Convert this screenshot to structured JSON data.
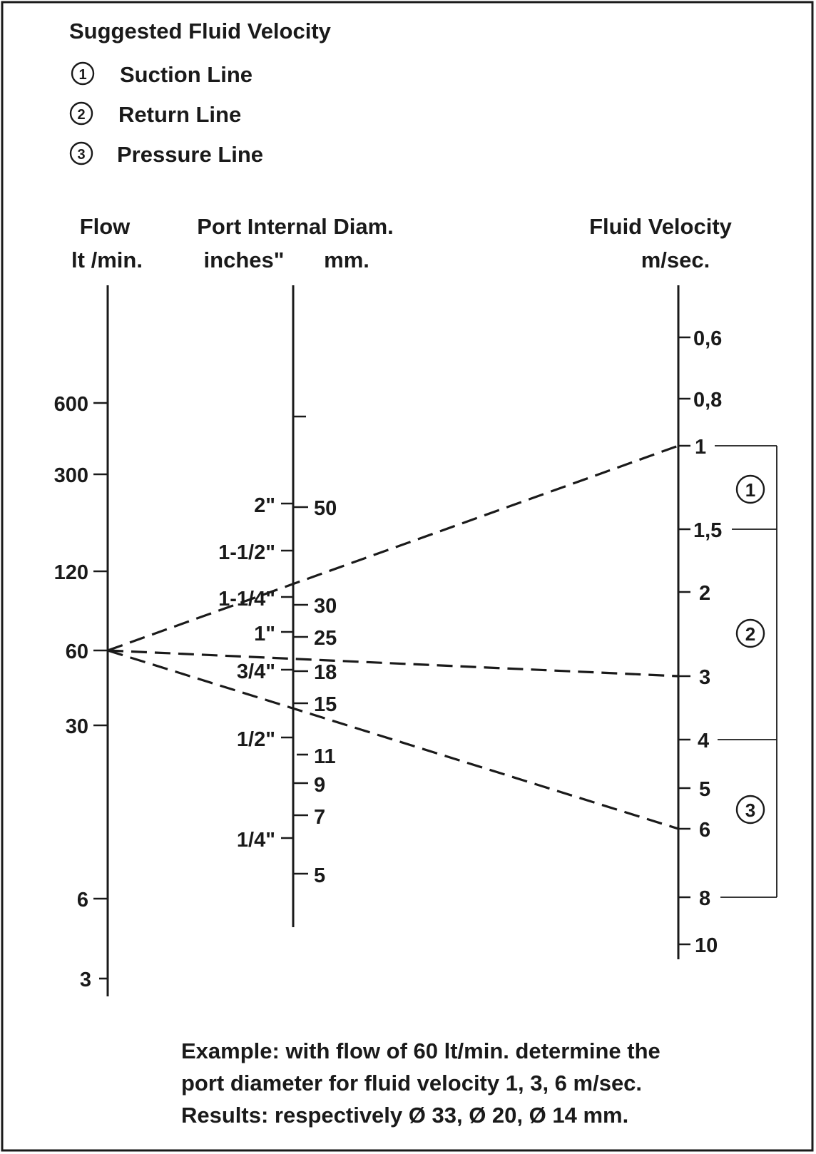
{
  "title": "Suggested Fluid Velocity",
  "legend": [
    {
      "num": "1",
      "label": "Suction Line"
    },
    {
      "num": "2",
      "label": "Return Line"
    },
    {
      "num": "3",
      "label": "Pressure Line"
    }
  ],
  "flow_axis": {
    "title": "Flow",
    "unit": "lt /min.",
    "ticks": [
      "600",
      "300",
      "120",
      "60",
      "30",
      "6",
      "3"
    ]
  },
  "port_axis": {
    "title": "Port Internal Diam.",
    "unit_inches": "inches\"",
    "unit_mm": "mm.",
    "inch_ticks": [
      "2\"",
      "1-1/2\"",
      "1-1/4\"",
      "1\"",
      "3/4\"",
      "1/2\"",
      "1/4\""
    ],
    "mm_ticks": [
      "50",
      "30",
      "25",
      "18",
      "15",
      "11",
      "9",
      "7",
      "5"
    ]
  },
  "velocity_axis": {
    "title": "Fluid Velocity",
    "unit": "m/sec.",
    "ticks": [
      "0,6",
      "0,8",
      "1",
      "1,5",
      "2",
      "3",
      "4",
      "5",
      "6",
      "8",
      "10"
    ]
  },
  "ranges": [
    {
      "num": "1",
      "from": "1",
      "to": "1,5"
    },
    {
      "num": "2",
      "from": "1,5",
      "to": "4"
    },
    {
      "num": "3",
      "from": "4",
      "to": "8"
    }
  ],
  "example": {
    "flow": "60",
    "velocities": [
      "1",
      "3",
      "6"
    ],
    "results_mm": [
      "33",
      "20",
      "14"
    ]
  },
  "caption": [
    "Example: with flow of 60 lt/min. determine the",
    "port diameter for fluid velocity 1, 3, 6 m/sec.",
    "Results: respectively  Ø 33, Ø 20, Ø 14 mm."
  ]
}
